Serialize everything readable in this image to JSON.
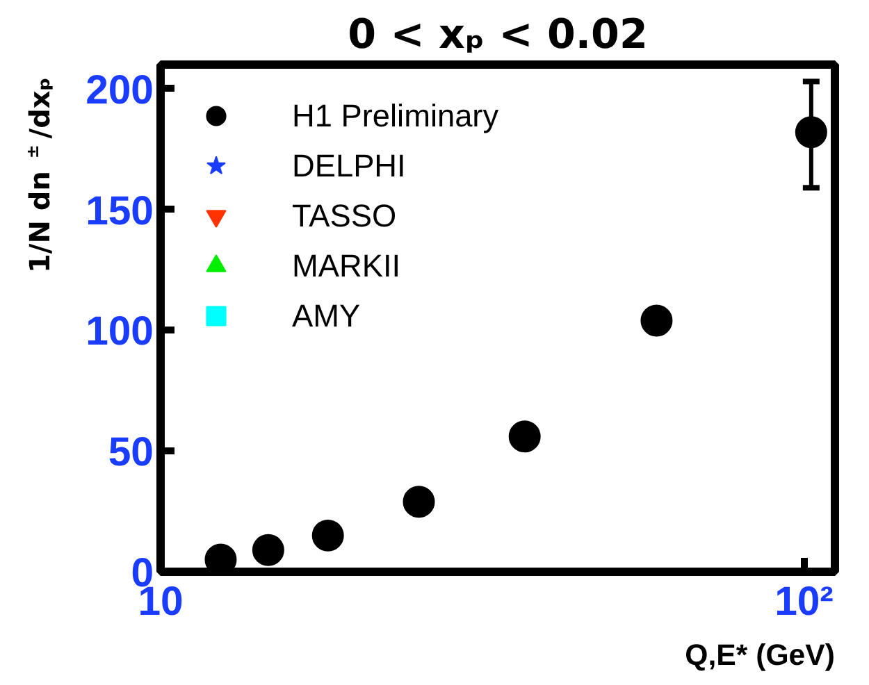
{
  "chart_data": {
    "type": "scatter",
    "title": "0 < xₚ < 0.02",
    "xlabel": "Q,E* (GeV)",
    "ylabel": "1/N dn$^{±}$/dxₚ",
    "x": [
      12.4,
      14.7,
      18.2,
      25.2,
      36.8,
      59.0,
      102.6
    ],
    "series": [
      {
        "name": "H1 Preliminary",
        "color": "#000000",
        "marker": "circle",
        "values": [
          5,
          9,
          15,
          29,
          56,
          104,
          182
        ],
        "errors": [
          null,
          null,
          null,
          null,
          null,
          null,
          [
            159,
            203
          ]
        ]
      },
      {
        "name": "DELPHI",
        "color": "#1a3cff",
        "marker": "star",
        "values": [
          null,
          null,
          null,
          null,
          null,
          null,
          null
        ]
      },
      {
        "name": "TASSO",
        "color": "#ff3300",
        "marker": "inverted_triangle",
        "values": [
          null,
          null,
          null,
          null,
          null,
          null,
          null
        ]
      },
      {
        "name": "MARKII",
        "color": "#00ee00",
        "marker": "triangle",
        "values": [
          null,
          null,
          null,
          null,
          null,
          null,
          null
        ]
      },
      {
        "name": "AMY",
        "color": "#00ffff",
        "marker": "square",
        "values": [
          null,
          null,
          null,
          null,
          null,
          null,
          null
        ]
      }
    ],
    "log": "x",
    "xlim": [
      10,
      111.7
    ],
    "xticks": [
      10,
      {
        "value": 100,
        "label": "10²"
      }
    ],
    "ylim": [
      0,
      210
    ],
    "yticks": [
      0,
      50,
      100,
      150,
      200
    ],
    "grid": false,
    "legend": "top left"
  }
}
